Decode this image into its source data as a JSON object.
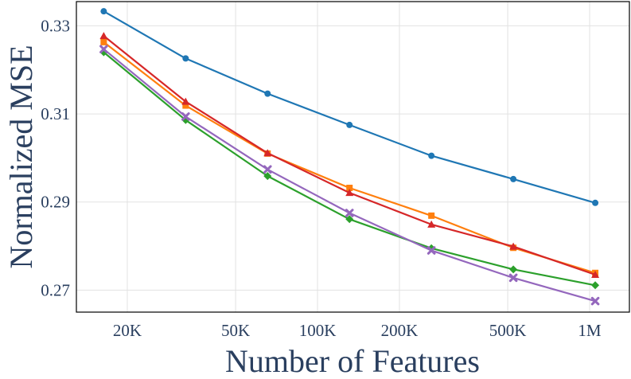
{
  "chart_data": {
    "type": "line",
    "xlabel": "Number of Features",
    "ylabel": "Normalized MSE",
    "x_scale": "log",
    "xlim": [
      13000,
      1400000
    ],
    "ylim": [
      0.265,
      0.3355
    ],
    "x_ticks": [
      {
        "value": 20000,
        "label": "20K"
      },
      {
        "value": 50000,
        "label": "50K"
      },
      {
        "value": 100000,
        "label": "100K"
      },
      {
        "value": 200000,
        "label": "200K"
      },
      {
        "value": 500000,
        "label": "500K"
      },
      {
        "value": 1000000,
        "label": "1M"
      }
    ],
    "y_ticks": [
      {
        "value": 0.27,
        "label": "0.27"
      },
      {
        "value": 0.29,
        "label": "0.29"
      },
      {
        "value": 0.31,
        "label": "0.31"
      },
      {
        "value": 0.33,
        "label": "0.33"
      }
    ],
    "grid": true,
    "legend": "none",
    "x": [
      16384,
      32768,
      65536,
      131072,
      262144,
      524288,
      1048576
    ],
    "series": [
      {
        "color": "#1f77b4",
        "marker": "circle",
        "values": [
          0.3333,
          0.3226,
          0.3146,
          0.3075,
          0.3005,
          0.2952,
          0.2898
        ]
      },
      {
        "color": "#ff7f0e",
        "marker": "square",
        "values": [
          0.3263,
          0.3119,
          0.301,
          0.2932,
          0.2869,
          0.2796,
          0.2739
        ]
      },
      {
        "color": "#d62728",
        "marker": "triangle",
        "values": [
          0.3277,
          0.3128,
          0.3011,
          0.2921,
          0.2849,
          0.2799,
          0.2735
        ]
      },
      {
        "color": "#2ca02c",
        "marker": "diamond",
        "values": [
          0.324,
          0.3086,
          0.2959,
          0.2861,
          0.2795,
          0.2747,
          0.2711
        ]
      },
      {
        "color": "#9467bd",
        "marker": "x",
        "values": [
          0.3247,
          0.3094,
          0.2974,
          0.2875,
          0.279,
          0.2728,
          0.2675
        ]
      }
    ]
  }
}
